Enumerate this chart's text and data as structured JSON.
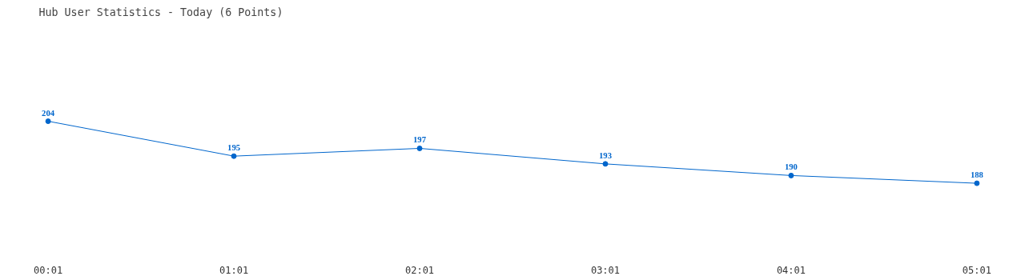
{
  "chart_data": {
    "type": "line",
    "title": "Hub User Statistics - Today (6 Points)",
    "categories": [
      "00:01",
      "01:01",
      "02:01",
      "03:01",
      "04:01",
      "05:01"
    ],
    "series": [
      {
        "color": "#0066cc",
        "values": [
          204,
          195,
          197,
          193,
          190,
          188
        ]
      }
    ],
    "data_labels": true,
    "marker": "circle",
    "grid": false,
    "line_style": "solid",
    "tick_labels": "x"
  }
}
